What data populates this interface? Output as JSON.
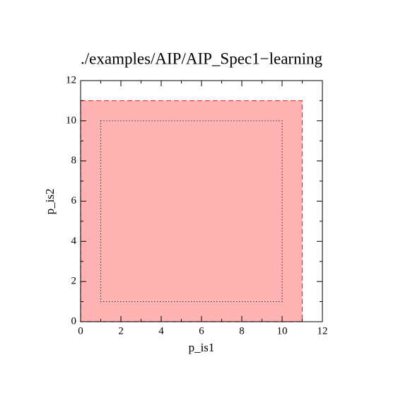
{
  "chart_data": {
    "type": "region",
    "title": "./examples/AIP/AIP_Spec1−learning",
    "x_label": "p_is1",
    "y_label": "p_is2",
    "xlim": [
      0,
      12
    ],
    "ylim": [
      0,
      12
    ],
    "xticks": [
      0,
      2,
      4,
      6,
      8,
      10,
      12
    ],
    "yticks": [
      0,
      2,
      4,
      6,
      8,
      10,
      12
    ],
    "minor_xticks": [
      1,
      3,
      5,
      7,
      9,
      11
    ],
    "minor_yticks": [
      1,
      3,
      5,
      7,
      9,
      11
    ],
    "regions": [
      {
        "x": [
          0,
          11
        ],
        "y": [
          0,
          11
        ],
        "fill": "#ffb3b3",
        "edge": "#e8323a",
        "style": "dashed"
      },
      {
        "x": [
          1,
          10
        ],
        "y": [
          1,
          10
        ],
        "fill": "none",
        "edge": "#000000",
        "style": "dotted"
      }
    ]
  }
}
